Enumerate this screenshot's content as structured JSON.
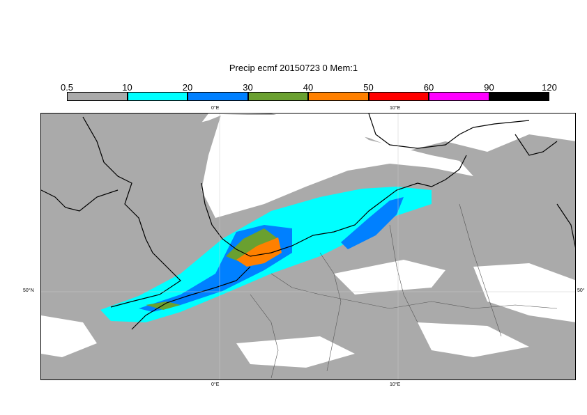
{
  "title": "Precip ecmf 20150723 0 Mem:1",
  "legend": {
    "ticks": [
      "0.5",
      "10",
      "20",
      "30",
      "40",
      "50",
      "60",
      "90",
      "120"
    ],
    "colors": [
      "#aaaaaa",
      "#00ffff",
      "#0080ff",
      "#6aa030",
      "#ff8000",
      "#ff0000",
      "#ff00ff",
      "#000000"
    ]
  },
  "axes": {
    "top_lon": [
      "0°E",
      "10°E"
    ],
    "bottom_lon": [
      "0°E",
      "10°E"
    ],
    "left_lat": "50°N",
    "right_lat": "50°"
  }
}
